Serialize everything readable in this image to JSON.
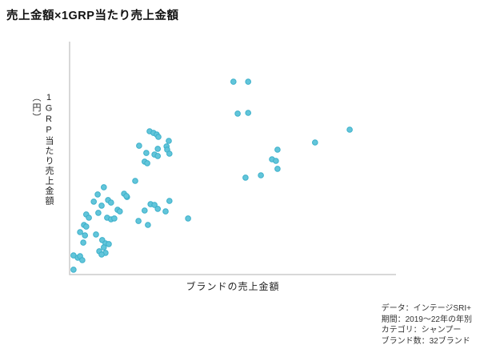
{
  "title": "売上金額×1GRP当たり売上金額",
  "chart_data": {
    "type": "scatter",
    "title": "売上金額×1GRP当たり売上金額",
    "xlabel": "ブランドの売上金額",
    "ylabel": "1GRP当たり売上金額（円）",
    "axis_note": "axes have no tick marks or numeric labels; point coordinates are relative 0-100 along each axis",
    "xlim": [
      0,
      100
    ],
    "ylim": [
      0,
      100
    ],
    "grid": false,
    "legend": false,
    "marker_color": "#62c5da",
    "marker_stroke": "#3cb0ca",
    "axis_color": "#cccccc",
    "points": [
      [
        50.2,
        82.8
      ],
      [
        54.7,
        82.8
      ],
      [
        51.5,
        69.1
      ],
      [
        54.7,
        69.4
      ],
      [
        85.8,
        62.2
      ],
      [
        75.2,
        56.7
      ],
      [
        63.7,
        53.6
      ],
      [
        62.0,
        49.5
      ],
      [
        63.2,
        48.8
      ],
      [
        63.7,
        45.4
      ],
      [
        53.9,
        41.6
      ],
      [
        58.6,
        42.6
      ],
      [
        24.5,
        61.5
      ],
      [
        25.7,
        60.8
      ],
      [
        26.7,
        60.1
      ],
      [
        27.2,
        59.1
      ],
      [
        30.4,
        57.4
      ],
      [
        21.3,
        55.3
      ],
      [
        29.7,
        55.0
      ],
      [
        29.9,
        53.6
      ],
      [
        27.0,
        54.0
      ],
      [
        23.5,
        52.2
      ],
      [
        26.0,
        51.5
      ],
      [
        23.0,
        48.5
      ],
      [
        23.8,
        47.8
      ],
      [
        30.6,
        51.9
      ],
      [
        27.0,
        50.9
      ],
      [
        20.1,
        40.2
      ],
      [
        10.5,
        37.5
      ],
      [
        8.6,
        34.4
      ],
      [
        16.7,
        34.7
      ],
      [
        17.6,
        33.3
      ],
      [
        30.6,
        31.6
      ],
      [
        24.8,
        30.2
      ],
      [
        26.0,
        29.9
      ],
      [
        27.0,
        28.2
      ],
      [
        23.0,
        27.5
      ],
      [
        29.4,
        27.1
      ],
      [
        36.3,
        24.1
      ],
      [
        21.1,
        23.0
      ],
      [
        24.0,
        21.3
      ],
      [
        17.4,
        33.7
      ],
      [
        7.4,
        31.3
      ],
      [
        11.8,
        32.0
      ],
      [
        12.7,
        30.9
      ],
      [
        9.8,
        29.6
      ],
      [
        14.7,
        27.8
      ],
      [
        15.4,
        27.1
      ],
      [
        8.8,
        26.5
      ],
      [
        5.1,
        25.8
      ],
      [
        5.9,
        24.4
      ],
      [
        11.5,
        24.4
      ],
      [
        12.7,
        23.7
      ],
      [
        13.7,
        24.1
      ],
      [
        4.4,
        21.3
      ],
      [
        5.1,
        20.6
      ],
      [
        3.2,
        18.2
      ],
      [
        4.7,
        16.8
      ],
      [
        8.1,
        17.2
      ],
      [
        4.2,
        13.7
      ],
      [
        10.0,
        14.8
      ],
      [
        11.0,
        13.4
      ],
      [
        12.0,
        13.1
      ],
      [
        10.5,
        11.7
      ],
      [
        9.1,
        10.0
      ],
      [
        11.0,
        9.3
      ],
      [
        1.2,
        8.2
      ],
      [
        2.5,
        7.2
      ],
      [
        3.2,
        7.9
      ],
      [
        3.9,
        6.2
      ],
      [
        1.2,
        2.1
      ],
      [
        9.8,
        8.6
      ]
    ]
  },
  "source_notes": {
    "lines": [
      "データ：インテージSRI+",
      "期間：2019～22年の年別",
      "カテゴリ：シャンプー",
      "ブランド数：32ブランド"
    ]
  }
}
